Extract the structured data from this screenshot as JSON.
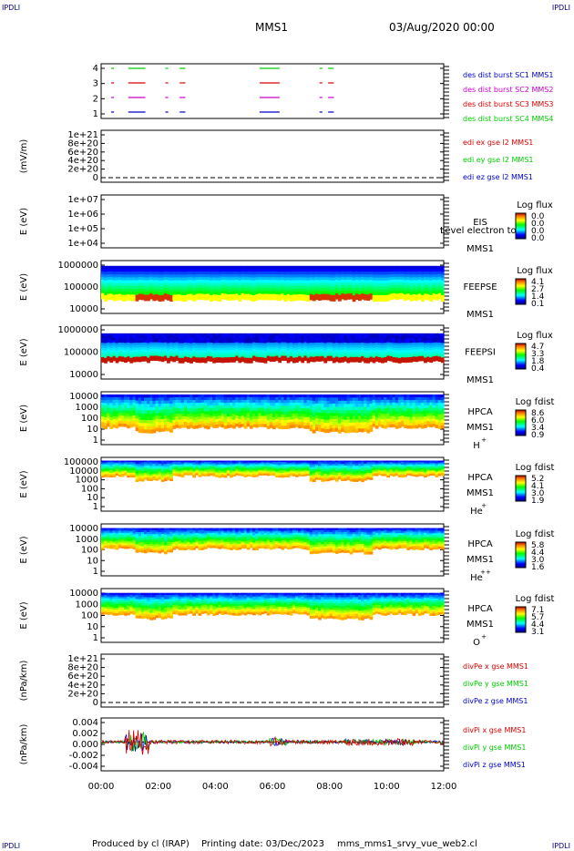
{
  "corners": {
    "tl": "IPDLI",
    "tr": "IPDLI",
    "bl": "IPDLI",
    "br": "IPDLI"
  },
  "header": {
    "title": "MMS1",
    "datetime": "03/Aug/2020 00:00"
  },
  "footer": {
    "produced": "Produced by cl (IRAP)",
    "printing": "Printing date: 03/Dec/2023",
    "script": "mms_mms1_srvy_vue_web2.cl"
  },
  "colors": {
    "black": "#000000",
    "red": "#dd0000",
    "green": "#00cc00",
    "blue": "#0000cc",
    "magenta": "#cc00cc"
  },
  "x_ticks": [
    "00:00",
    "02:00",
    "04:00",
    "06:00",
    "08:00",
    "10:00",
    "12:00"
  ],
  "chart_data": [
    {
      "type": "line",
      "id": "burst",
      "ylim": [
        0.5,
        4.5
      ],
      "yticks": [
        "4",
        "3",
        "2",
        "1"
      ],
      "legend": [
        {
          "name": "des dist burst SC1 MMS1",
          "color": "#0000cc"
        },
        {
          "name": "des dist burst SC2 MMS2",
          "color": "#cc00cc"
        },
        {
          "name": "des dist burst SC3 MMS3",
          "color": "#dd0000"
        },
        {
          "name": "des dist burst SC4 MMS4",
          "color": "#00cc00"
        }
      ],
      "segments": [
        [
          0.35,
          0.45
        ],
        [
          0.95,
          1.55
        ],
        [
          2.25,
          2.35
        ],
        [
          2.75,
          2.95
        ],
        [
          5.55,
          6.25
        ],
        [
          7.65,
          7.75
        ],
        [
          7.95,
          8.15
        ]
      ]
    },
    {
      "type": "line",
      "id": "edi",
      "ylabel": "(mV/m)",
      "yticks": [
        "1e+21",
        "8e+20",
        "6e+20",
        "4e+20",
        "2e+20",
        "0"
      ],
      "legend": [
        {
          "name": "edi ex gse l2 MMS1",
          "color": "#dd0000"
        },
        {
          "name": "edi ey gse l2 MMS1",
          "color": "#00cc00"
        },
        {
          "name": "edi ez gse l2 MMS1",
          "color": "#0000cc"
        }
      ]
    },
    {
      "type": "heatmap",
      "id": "eis",
      "ylabel": "E (eV)",
      "yticks": [
        "1e+07",
        "1e+06",
        "1e+05",
        "1e+04"
      ],
      "name": "EIS",
      "sc": "MMS1",
      "overlay": "Level electron to",
      "cb_title": "Log flux",
      "cb_ticks": [
        "0.0",
        "0.0",
        "0.0",
        "0.0"
      ]
    },
    {
      "type": "heatmap",
      "id": "feepse",
      "ylabel": "E (eV)",
      "yticks": [
        "1000000",
        "100000",
        "10000"
      ],
      "name": "FEEPSE",
      "sc": "MMS1",
      "cb_title": "Log flux",
      "cb_ticks": [
        "4.1",
        "2.7",
        "1.4",
        "0.1"
      ]
    },
    {
      "type": "heatmap",
      "id": "feepsi",
      "ylabel": "E (eV)",
      "yticks": [
        "1000000",
        "100000",
        "10000"
      ],
      "name": "FEEPSI",
      "sc": "MMS1",
      "cb_title": "Log flux",
      "cb_ticks": [
        "4.7",
        "3.3",
        "1.8",
        "0.4"
      ]
    },
    {
      "type": "heatmap",
      "id": "hpca_h",
      "ylabel": "E (eV)",
      "yticks": [
        "10000",
        "1000",
        "100",
        "10",
        "1"
      ],
      "name": "HPCA",
      "sc": "MMS1",
      "species": "H",
      "charge": "+",
      "cb_title": "Log fdist",
      "cb_ticks": [
        "8.6",
        "6.0",
        "3.4",
        "0.9"
      ]
    },
    {
      "type": "heatmap",
      "id": "hpca_he",
      "ylabel": "E (eV)",
      "yticks": [
        "100000",
        "10000",
        "1000",
        "100",
        "10",
        "1"
      ],
      "name": "HPCA",
      "sc": "MMS1",
      "species": "He",
      "charge": "+",
      "cb_title": "Log fdist",
      "cb_ticks": [
        "5.2",
        "4.1",
        "3.0",
        "1.9"
      ]
    },
    {
      "type": "heatmap",
      "id": "hpca_he2",
      "ylabel": "E (eV)",
      "yticks": [
        "10000",
        "1000",
        "100",
        "10",
        "1"
      ],
      "name": "HPCA",
      "sc": "MMS1",
      "species": "He",
      "charge": "++",
      "cb_title": "Log fdist",
      "cb_ticks": [
        "5.8",
        "4.4",
        "3.0",
        "1.6"
      ]
    },
    {
      "type": "heatmap",
      "id": "hpca_o",
      "ylabel": "E (eV)",
      "yticks": [
        "10000",
        "1000",
        "100",
        "10",
        "1"
      ],
      "name": "HPCA",
      "sc": "MMS1",
      "species": "O",
      "charge": "+",
      "cb_title": "Log fdist",
      "cb_ticks": [
        "7.1",
        "5.7",
        "4.4",
        "3.1"
      ]
    },
    {
      "type": "line",
      "id": "divpe",
      "ylabel": "(nPa/km)",
      "yticks": [
        "1e+21",
        "8e+20",
        "6e+20",
        "4e+20",
        "2e+20",
        "0"
      ],
      "legend": [
        {
          "name": "divPe x gse MMS1",
          "color": "#dd0000"
        },
        {
          "name": "divPe y gse MMS1",
          "color": "#00cc00"
        },
        {
          "name": "divPe z gse MMS1",
          "color": "#0000cc"
        }
      ]
    },
    {
      "type": "line",
      "id": "divpi",
      "ylabel": "(nPa/km)",
      "yticks": [
        "0.004",
        "0.002",
        "0.000",
        "-0.002",
        "-0.004"
      ],
      "ylim": [
        -0.005,
        0.004
      ],
      "legend": [
        {
          "name": "divPi x gse MMS1",
          "color": "#dd0000"
        },
        {
          "name": "divPi y gse MMS1",
          "color": "#00cc00"
        },
        {
          "name": "divPi z gse MMS1",
          "color": "#0000cc"
        }
      ]
    }
  ]
}
